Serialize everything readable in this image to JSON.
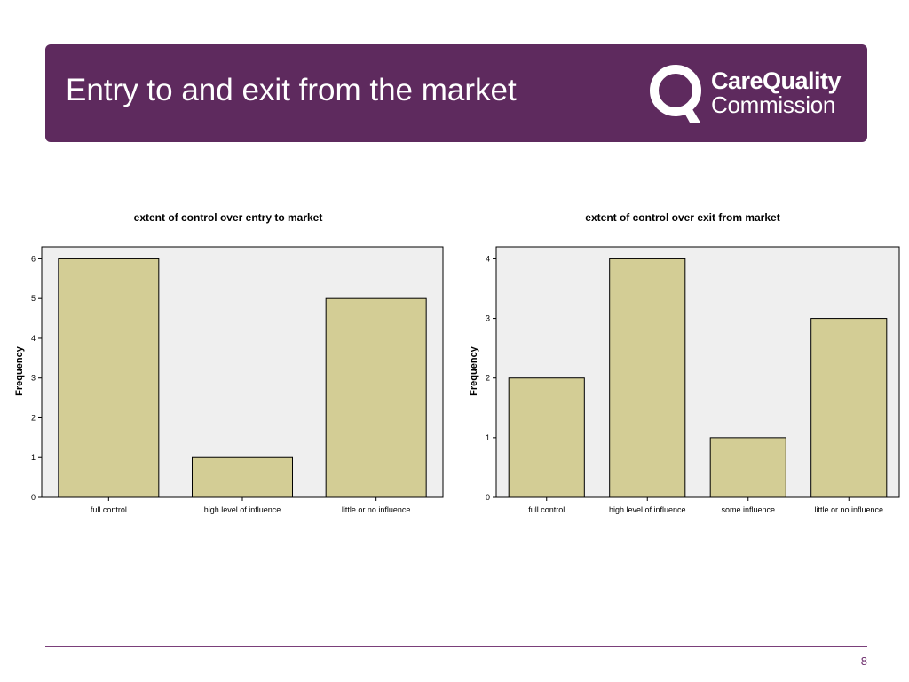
{
  "slide": {
    "title": "Entry to and exit from the market",
    "brand_line1": "CareQuality",
    "brand_line2": "Commission",
    "page_number": "8"
  },
  "colors": {
    "header_bg": "#5e2a5e",
    "bar_fill": "#d3cd95",
    "plot_bg": "#efefef",
    "page_number": "#6b2a6b"
  },
  "icons": {
    "logo": "cqc-q-logo-icon"
  },
  "chart_data": [
    {
      "type": "bar",
      "title": "extent of control over entry to market",
      "xlabel": "",
      "ylabel": "Frequency",
      "categories": [
        "full control",
        "high level of influence",
        "little or no influence"
      ],
      "values": [
        6,
        1,
        5
      ],
      "ylim": [
        0,
        6.3
      ],
      "yticks": [
        "0",
        "1",
        "2",
        "3",
        "4",
        "5",
        "6"
      ],
      "grid": false,
      "legend": "none"
    },
    {
      "type": "bar",
      "title": "extent of control over exit from market",
      "xlabel": "",
      "ylabel": "Frequency",
      "categories": [
        "full control",
        "high level of influence",
        "some influence",
        "little or no influence"
      ],
      "values": [
        2,
        4,
        1,
        3
      ],
      "ylim": [
        0,
        4.2
      ],
      "yticks": [
        "0",
        "1",
        "2",
        "3",
        "4"
      ],
      "grid": false,
      "legend": "none"
    }
  ]
}
